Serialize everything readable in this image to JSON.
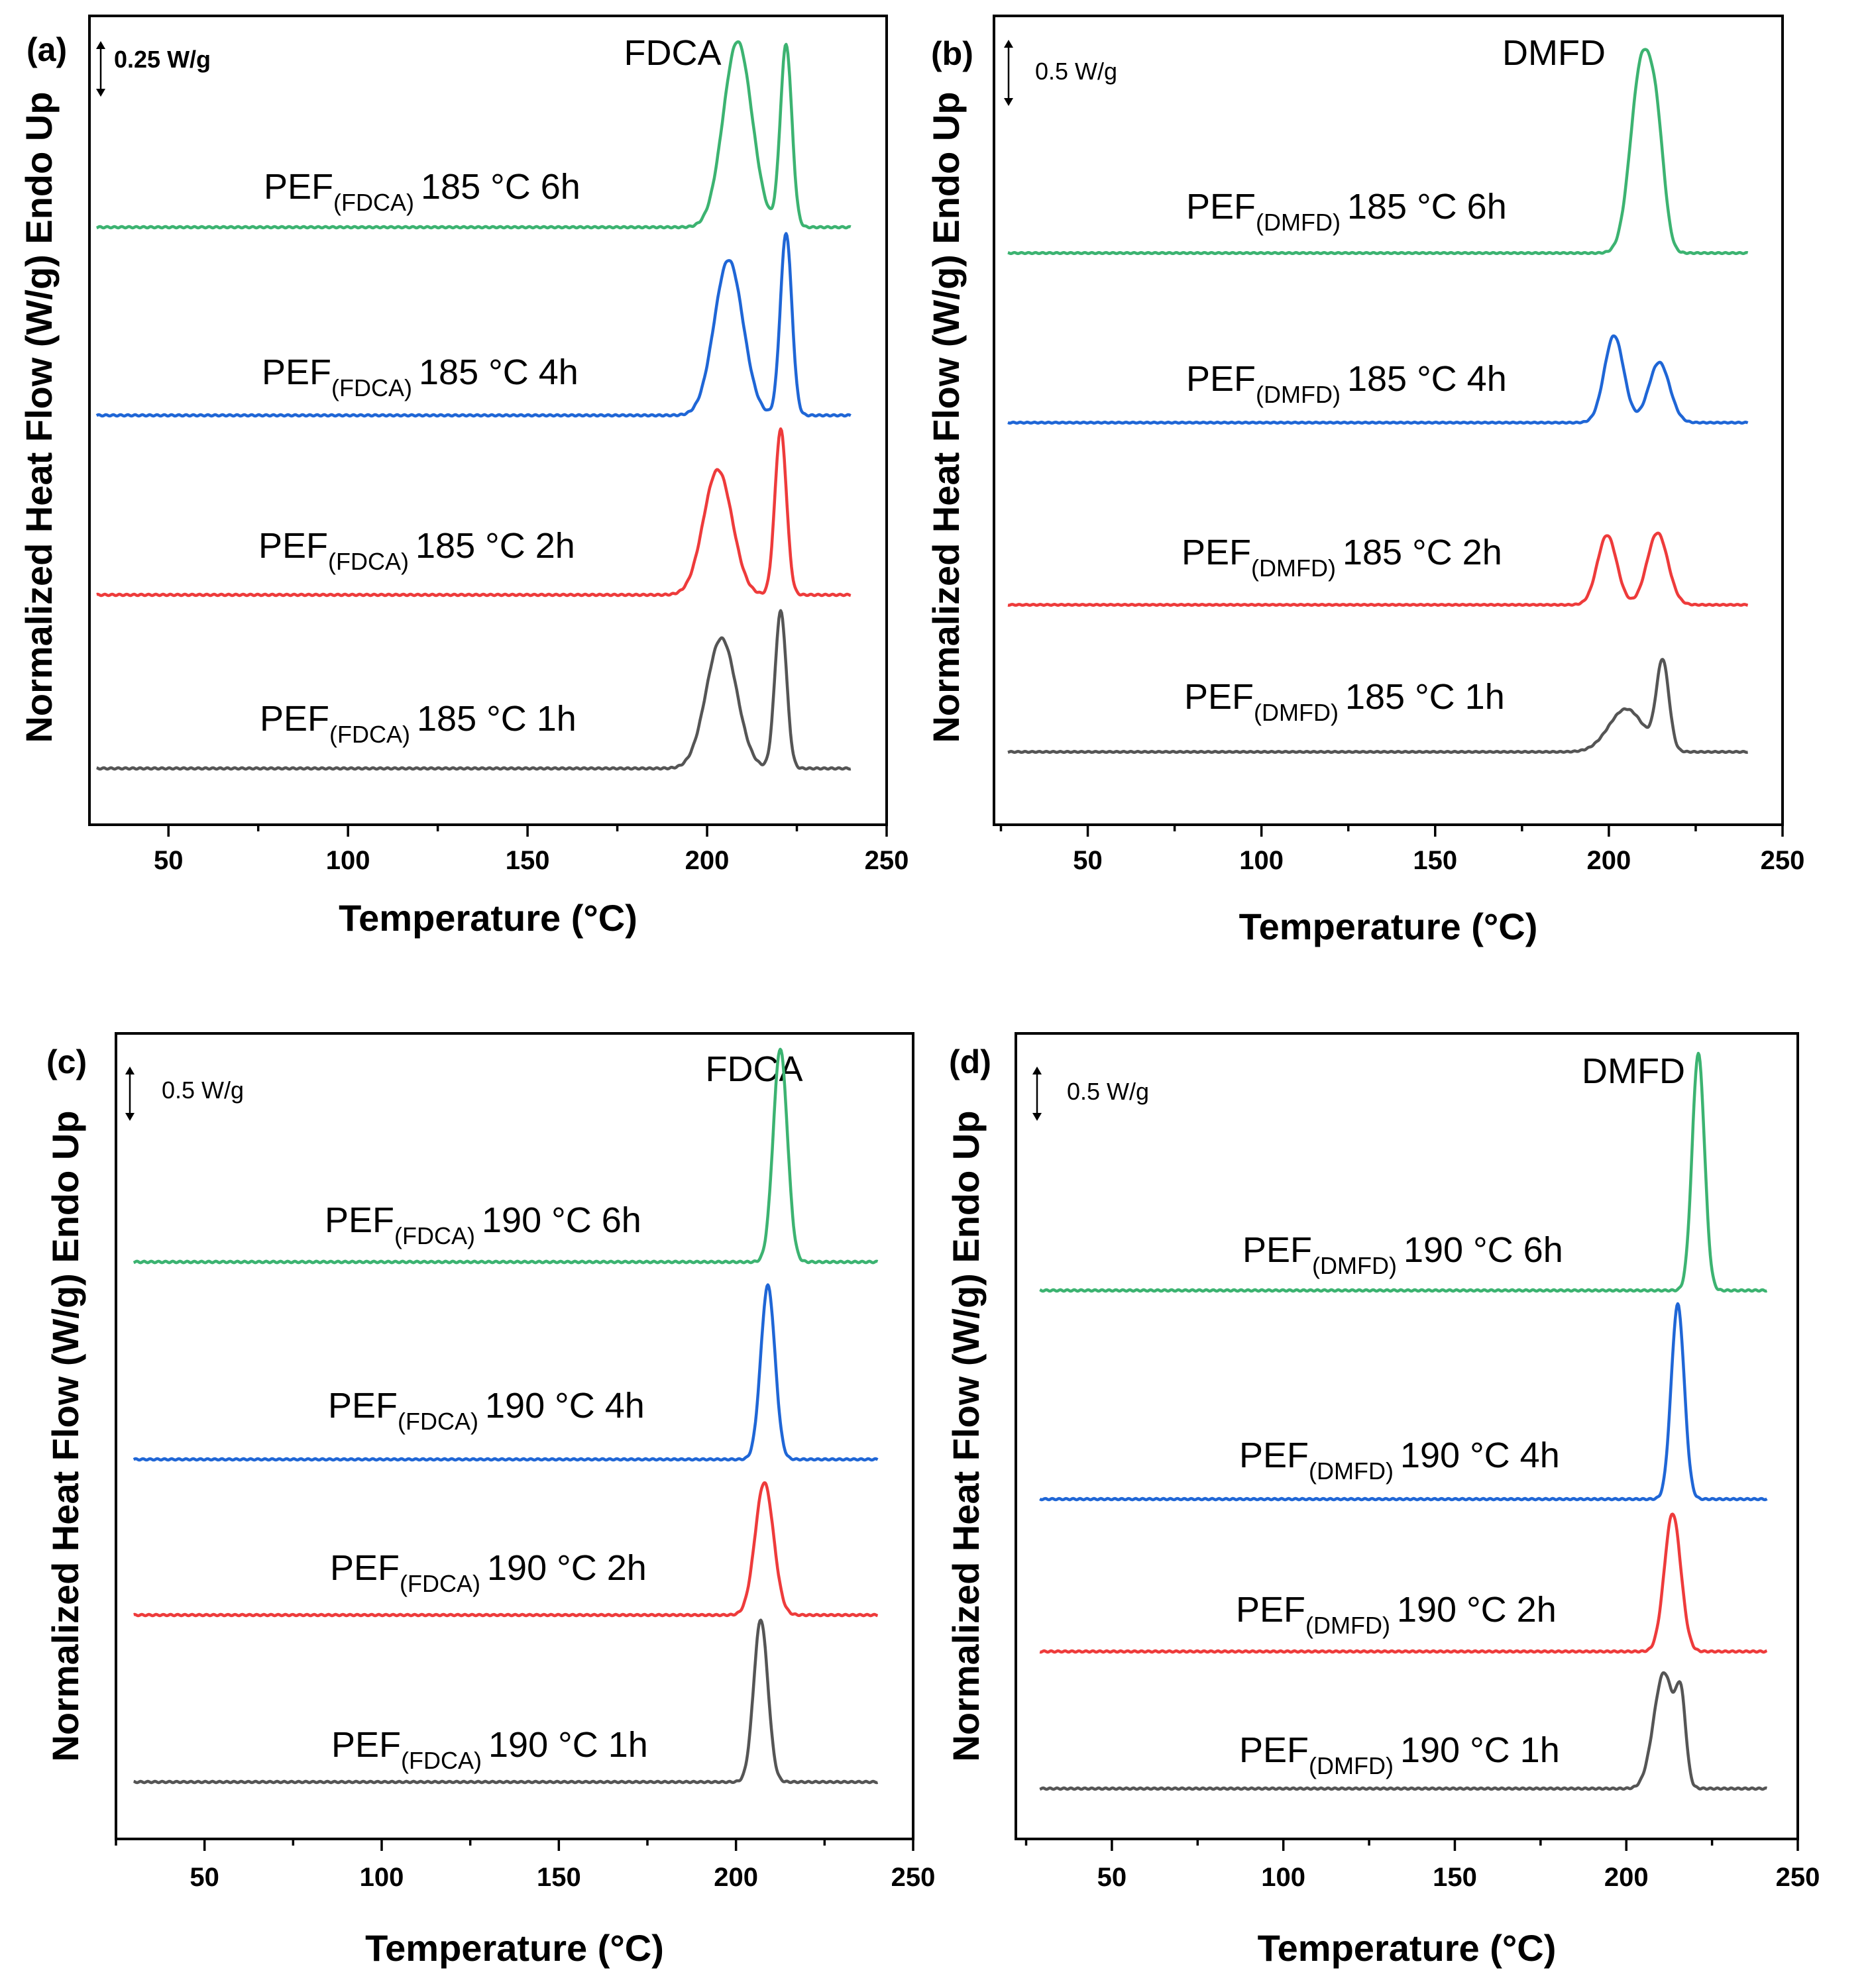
{
  "chart_data": [
    {
      "type": "line",
      "panel": "(a)",
      "title": "FDCA",
      "scale_bar": "0.25 W/g",
      "xlabel": "Temperature (°C)",
      "ylabel": "Normalized Heat Flow (W/g) Endo Up",
      "xlim": [
        28,
        250
      ],
      "xticks": [
        50,
        100,
        150,
        200,
        250
      ],
      "x_range": [
        30,
        240
      ],
      "series": [
        {
          "name": "PEF(FDCA) 185 °C 6h",
          "base": "PEF",
          "sub": "(FDCA)",
          "cond": "185 °C 6h",
          "color": "#3cb371",
          "offset": 3.0,
          "peaks": [
            {
              "x": 208.5,
              "h": 1.1,
              "w": 4.0
            },
            {
              "x": 222.0,
              "h": 1.08,
              "w": 1.6
            }
          ]
        },
        {
          "name": "PEF(FDCA) 185 °C 4h",
          "base": "PEF",
          "sub": "(FDCA)",
          "cond": "185 °C 4h",
          "color": "#1f66d6",
          "offset": 2.0,
          "peaks": [
            {
              "x": 206.0,
              "h": 0.92,
              "w": 4.0
            },
            {
              "x": 222.0,
              "h": 1.08,
              "w": 1.6
            }
          ]
        },
        {
          "name": "PEF(FDCA) 185 °C 2h",
          "base": "PEF",
          "sub": "(FDCA)",
          "cond": "185 °C 2h",
          "color": "#ee3b3b",
          "offset": 1.0,
          "peaks": [
            {
              "x": 203.0,
              "h": 0.74,
              "w": 4.0
            },
            {
              "x": 220.5,
              "h": 0.98,
              "w": 1.6
            }
          ]
        },
        {
          "name": "PEF(FDCA) 185 °C 1h",
          "base": "PEF",
          "sub": "(FDCA)",
          "cond": "185 °C 1h",
          "color": "#555555",
          "offset": 0.0,
          "peaks": [
            {
              "x": 204.0,
              "h": 0.77,
              "w": 4.2
            },
            {
              "x": 220.5,
              "h": 0.93,
              "w": 1.6
            }
          ]
        }
      ]
    },
    {
      "type": "line",
      "panel": "(b)",
      "title": "DMFD",
      "scale_bar": "0.5 W/g",
      "xlabel": "Temperature (°C)",
      "ylabel": "Normalized Heat Flow (W/g) Endo Up",
      "xlim": [
        23,
        250
      ],
      "xticks": [
        50,
        100,
        150,
        200,
        250
      ],
      "x_range": [
        27,
        240
      ],
      "series": [
        {
          "name": "PEF(DMFD) 185 °C 6h",
          "base": "PEF",
          "sub": "(DMFD)",
          "cond": "185 °C 6h",
          "color": "#3cb371",
          "offset": 3.0,
          "peaks": [
            {
              "x": 209.5,
              "h": 1.4,
              "w": 3.2
            },
            {
              "x": 214.0,
              "h": 0.6,
              "w": 2.2
            }
          ]
        },
        {
          "name": "PEF(DMFD) 185 °C 4h",
          "base": "PEF",
          "sub": "(DMFD)",
          "cond": "185 °C 4h",
          "color": "#1f66d6",
          "offset": 2.0,
          "peaks": [
            {
              "x": 201.5,
              "h": 0.75,
              "w": 2.8
            },
            {
              "x": 214.5,
              "h": 0.52,
              "w": 3.0
            }
          ]
        },
        {
          "name": "PEF(DMFD) 185 °C 2h",
          "base": "PEF",
          "sub": "(DMFD)",
          "cond": "185 °C 2h",
          "color": "#ee3b3b",
          "offset": 1.0,
          "peaks": [
            {
              "x": 199.5,
              "h": 0.6,
              "w": 2.8
            },
            {
              "x": 214.0,
              "h": 0.62,
              "w": 3.0
            }
          ]
        },
        {
          "name": "PEF(DMFD) 185 °C 1h",
          "base": "PEF",
          "sub": "(DMFD)",
          "cond": "185 °C 1h",
          "color": "#555555",
          "offset": 0.0,
          "peaks": [
            {
              "x": 205.0,
              "h": 0.35,
              "w": 5.0
            },
            {
              "x": 215.5,
              "h": 0.72,
              "w": 1.8
            }
          ]
        }
      ]
    },
    {
      "type": "line",
      "panel": "(c)",
      "title": "FDCA",
      "scale_bar": "0.5 W/g",
      "xlabel": "Temperature (°C)",
      "ylabel": "Normalized Heat Flow (W/g) Endo Up",
      "xlim": [
        25,
        250
      ],
      "xticks": [
        50,
        100,
        150,
        200,
        250
      ],
      "x_range": [
        30,
        240
      ],
      "series": [
        {
          "name": "PEF(FDCA) 190 °C 6h",
          "base": "PEF",
          "sub": "(FDCA)",
          "cond": "190 °C 6h",
          "color": "#3cb371",
          "offset": 3.0,
          "peaks": [
            {
              "x": 212.5,
              "h": 1.15,
              "w": 2.0
            }
          ]
        },
        {
          "name": "PEF(FDCA) 190 °C 4h",
          "base": "PEF",
          "sub": "(FDCA)",
          "cond": "190 °C 4h",
          "color": "#1f66d6",
          "offset": 2.0,
          "peaks": [
            {
              "x": 209.0,
              "h": 1.05,
              "w": 2.0
            }
          ]
        },
        {
          "name": "PEF(FDCA) 190 °C 2h",
          "base": "PEF",
          "sub": "(FDCA)",
          "cond": "190 °C 2h",
          "color": "#ee3b3b",
          "offset": 1.0,
          "peaks": [
            {
              "x": 208.0,
              "h": 0.8,
              "w": 2.6
            }
          ]
        },
        {
          "name": "PEF(FDCA) 190 °C 1h",
          "base": "PEF",
          "sub": "(FDCA)",
          "cond": "190 °C 1h",
          "color": "#555555",
          "offset": 0.0,
          "peaks": [
            {
              "x": 207.0,
              "h": 0.98,
              "w": 2.0
            }
          ]
        }
      ]
    },
    {
      "type": "line",
      "panel": "(d)",
      "title": "DMFD",
      "scale_bar": "0.5 W/g",
      "xlabel": "Temperature (°C)",
      "ylabel": "Normalized Heat Flow (W/g) Endo Up",
      "xlim": [
        22,
        250
      ],
      "xticks": [
        50,
        100,
        150,
        200,
        250
      ],
      "x_range": [
        29,
        241
      ],
      "series": [
        {
          "name": "PEF(DMFD) 190 °C 6h",
          "base": "PEF",
          "sub": "(DMFD)",
          "cond": "190 °C 6h",
          "color": "#3cb371",
          "offset": 3.0,
          "peaks": [
            {
              "x": 221.0,
              "h": 1.35,
              "w": 1.8
            }
          ]
        },
        {
          "name": "PEF(DMFD) 190 °C 4h",
          "base": "PEF",
          "sub": "(DMFD)",
          "cond": "190 °C 4h",
          "color": "#1f66d6",
          "offset": 2.0,
          "peaks": [
            {
              "x": 215.0,
              "h": 1.2,
              "w": 1.9
            }
          ]
        },
        {
          "name": "PEF(DMFD) 190 °C 2h",
          "base": "PEF",
          "sub": "(DMFD)",
          "cond": "190 °C 2h",
          "color": "#ee3b3b",
          "offset": 1.0,
          "peaks": [
            {
              "x": 213.5,
              "h": 0.85,
              "w": 2.4
            }
          ]
        },
        {
          "name": "PEF(DMFD) 190 °C 1h",
          "base": "PEF",
          "sub": "(DMFD)",
          "cond": "190 °C 1h",
          "color": "#555555",
          "offset": 0.0,
          "peaks": [
            {
              "x": 211.0,
              "h": 0.7,
              "w": 3.0
            },
            {
              "x": 216.0,
              "h": 0.45,
              "w": 1.4
            }
          ]
        }
      ]
    }
  ]
}
